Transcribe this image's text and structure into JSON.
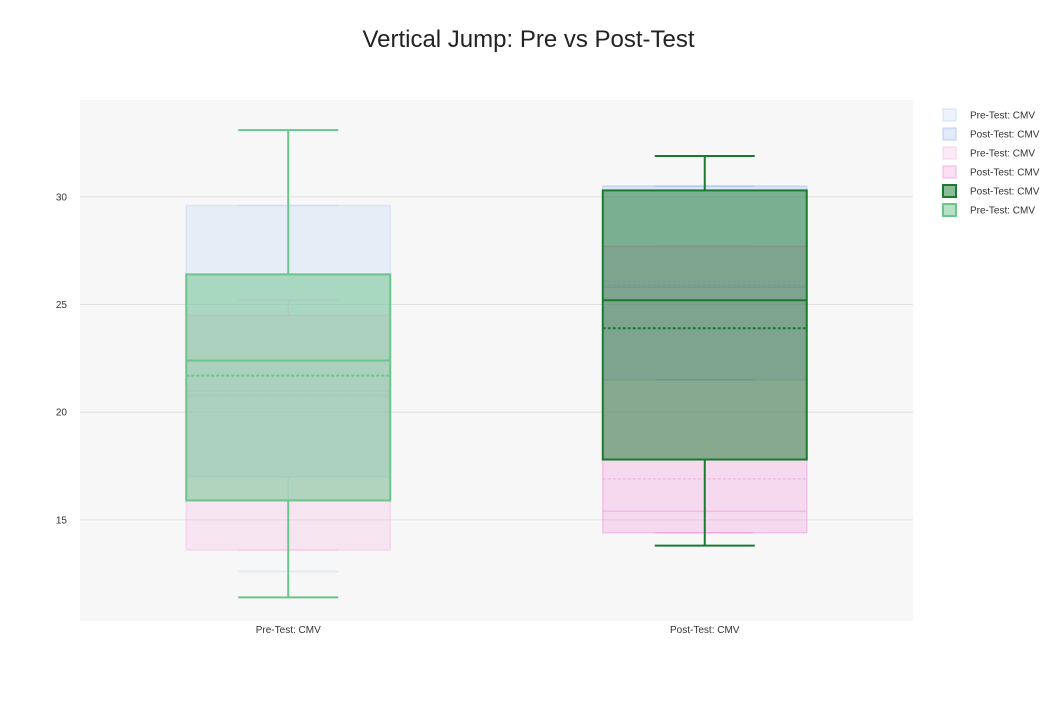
{
  "chart_data": {
    "type": "box",
    "title": "Vertical Jump: Pre vs Post-Test",
    "xlabel": "",
    "ylabel": "",
    "categories": [
      "Pre-Test: CMV",
      "Post-Test: CMV"
    ],
    "ylim": [
      10.3,
      34.5
    ],
    "yticks": [
      15,
      20,
      25,
      30
    ],
    "grid": true,
    "legend_position": "right",
    "series": [
      {
        "name": "Pre-Test: CMV",
        "category": "Pre-Test: CMV",
        "color": "#bcd4f4",
        "min": 12.6,
        "q1": 17.0,
        "median": 21.0,
        "q3": 29.6,
        "max": 29.6,
        "mean": 20.7
      },
      {
        "name": "Post-Test: CMV",
        "category": "Post-Test: CMV",
        "color": "#9cb8ee",
        "min": 21.5,
        "q1": 21.5,
        "median": 25.8,
        "q3": 30.5,
        "max": 30.5,
        "mean": 25.9
      },
      {
        "name": "Pre-Test: CMV",
        "category": "Pre-Test: CMV",
        "color": "#f4b8e4",
        "min": 13.6,
        "q1": 13.6,
        "median": 20.8,
        "q3": 24.5,
        "max": 25.2,
        "mean": 21.0
      },
      {
        "name": "Post-Test: CMV",
        "category": "Post-Test: CMV",
        "color": "#f090dc",
        "min": 14.4,
        "q1": 14.4,
        "median": 15.4,
        "q3": 27.7,
        "max": 27.7,
        "mean": 16.9
      },
      {
        "name": "Post-Test: CMV",
        "category": "Post-Test: CMV",
        "color": "#1a7a30",
        "min": 13.8,
        "q1": 17.8,
        "median": 25.2,
        "q3": 30.3,
        "max": 31.9,
        "mean": 23.9
      },
      {
        "name": "Pre-Test: CMV",
        "category": "Pre-Test: CMV",
        "color": "#6cc48c",
        "min": 11.4,
        "q1": 15.9,
        "median": 22.4,
        "q3": 26.4,
        "max": 33.1,
        "mean": 21.7
      }
    ]
  }
}
